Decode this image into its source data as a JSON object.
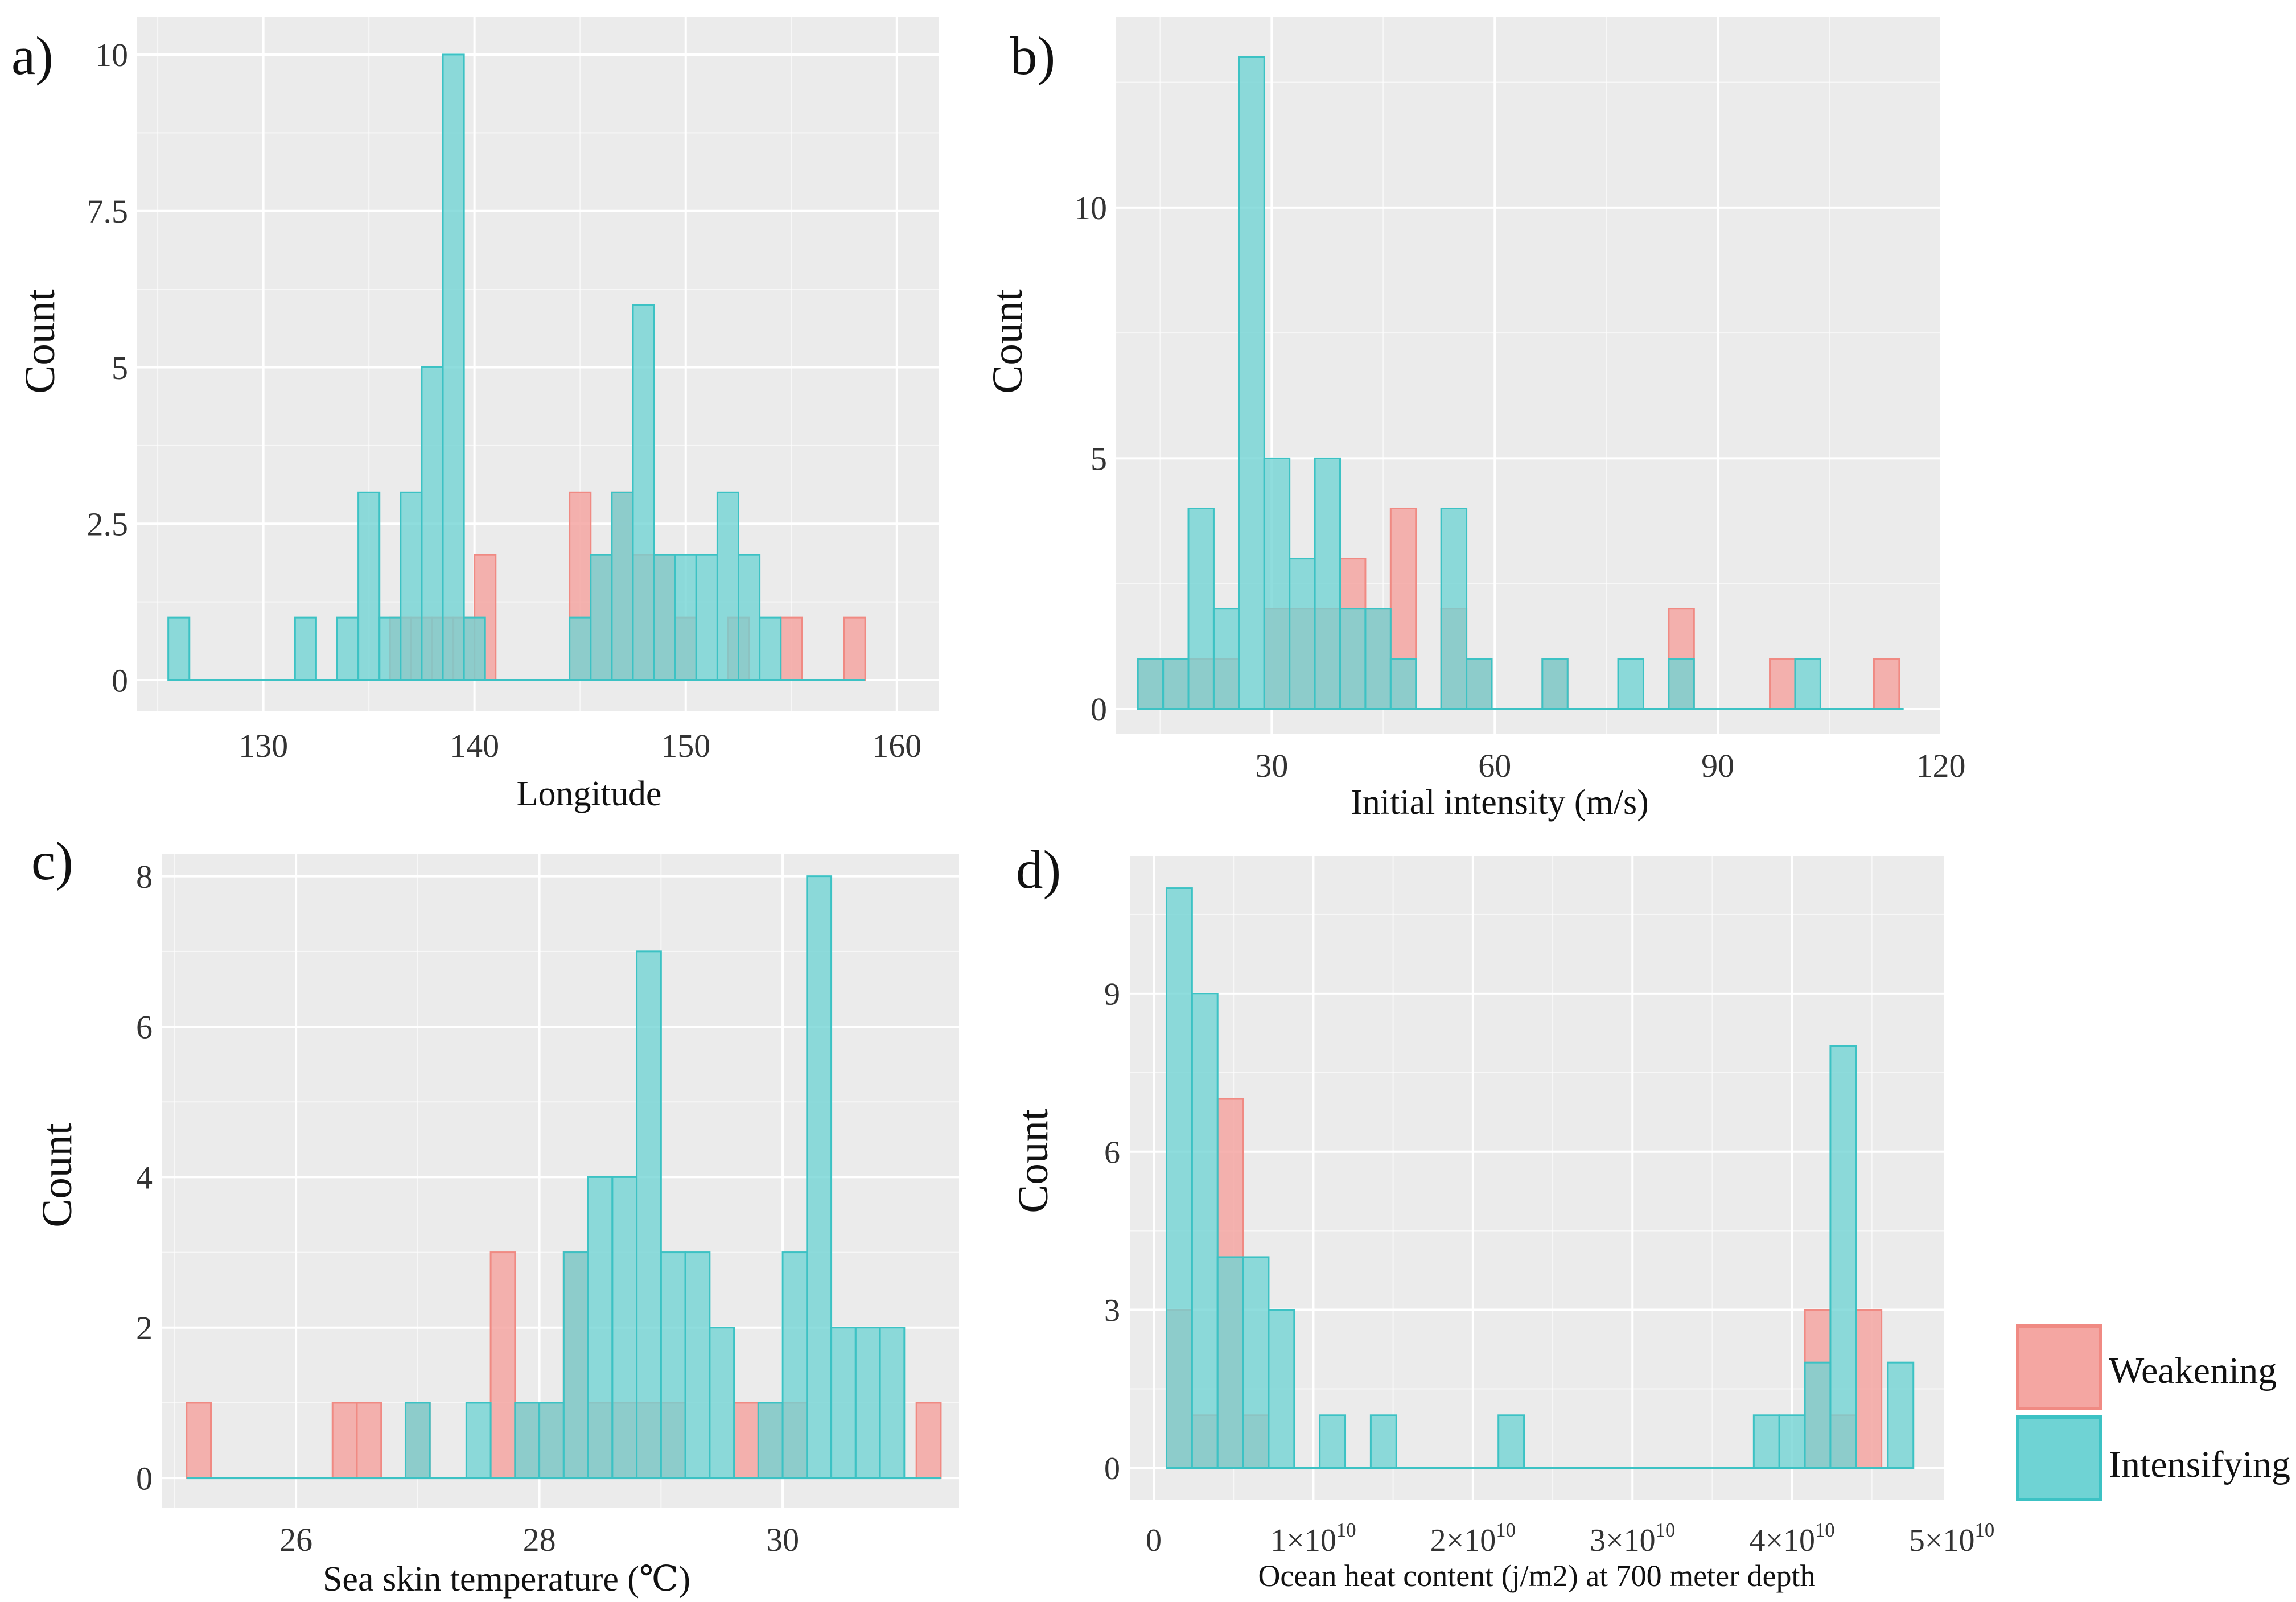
{
  "chart_data": [
    {
      "panel_label": "a)",
      "type": "bar",
      "xlabel": "Longitude",
      "ylabel": "Count",
      "xlim": [
        124,
        162
      ],
      "ylim": [
        -0.5,
        10.6
      ],
      "xticks": [
        130,
        140,
        150,
        160
      ],
      "xtick_labels": [
        "130",
        "140",
        "150",
        "160"
      ],
      "yticks": [
        0,
        2.5,
        5,
        7.5,
        10
      ],
      "ytick_labels": [
        "0",
        "2.5",
        "5",
        "7.5",
        "10"
      ],
      "baseline": {
        "from": 125.5,
        "to": 158.5
      },
      "series": [
        {
          "name": "Weakening",
          "bins": [
            {
              "x0": 136,
              "x1": 137,
              "v": 1
            },
            {
              "x0": 137,
              "x1": 138,
              "v": 1
            },
            {
              "x0": 138,
              "x1": 139,
              "v": 1
            },
            {
              "x0": 139,
              "x1": 140,
              "v": 1
            },
            {
              "x0": 140,
              "x1": 141,
              "v": 2
            },
            {
              "x0": 144.5,
              "x1": 145.5,
              "v": 3
            },
            {
              "x0": 145.5,
              "x1": 146.5,
              "v": 2
            },
            {
              "x0": 146.5,
              "x1": 147.5,
              "v": 3
            },
            {
              "x0": 147.5,
              "x1": 148.5,
              "v": 2
            },
            {
              "x0": 148.5,
              "x1": 149.5,
              "v": 2
            },
            {
              "x0": 149.5,
              "x1": 150.5,
              "v": 1
            },
            {
              "x0": 152,
              "x1": 153,
              "v": 1
            },
            {
              "x0": 154.5,
              "x1": 155.5,
              "v": 1
            },
            {
              "x0": 157.5,
              "x1": 158.5,
              "v": 1
            }
          ]
        },
        {
          "name": "Intensifying",
          "bins": [
            {
              "x0": 125.5,
              "x1": 126.5,
              "v": 1
            },
            {
              "x0": 131.5,
              "x1": 132.5,
              "v": 1
            },
            {
              "x0": 133.5,
              "x1": 134.5,
              "v": 1
            },
            {
              "x0": 134.5,
              "x1": 135.5,
              "v": 3
            },
            {
              "x0": 135.5,
              "x1": 136.5,
              "v": 1
            },
            {
              "x0": 136.5,
              "x1": 137.5,
              "v": 3
            },
            {
              "x0": 137.5,
              "x1": 138.5,
              "v": 5
            },
            {
              "x0": 138.5,
              "x1": 139.5,
              "v": 10
            },
            {
              "x0": 139.5,
              "x1": 140.5,
              "v": 1
            },
            {
              "x0": 144.5,
              "x1": 145.5,
              "v": 1
            },
            {
              "x0": 145.5,
              "x1": 146.5,
              "v": 2
            },
            {
              "x0": 146.5,
              "x1": 147.5,
              "v": 3
            },
            {
              "x0": 147.5,
              "x1": 148.5,
              "v": 6
            },
            {
              "x0": 148.5,
              "x1": 149.5,
              "v": 2
            },
            {
              "x0": 149.5,
              "x1": 150.5,
              "v": 2
            },
            {
              "x0": 150.5,
              "x1": 151.5,
              "v": 2
            },
            {
              "x0": 151.5,
              "x1": 152.5,
              "v": 3
            },
            {
              "x0": 152.5,
              "x1": 153.5,
              "v": 2
            },
            {
              "x0": 153.5,
              "x1": 154.5,
              "v": 1
            }
          ]
        }
      ]
    },
    {
      "panel_label": "b)",
      "type": "bar",
      "xlabel": "Initial intensity (m/s)",
      "ylabel": "Count",
      "xlim": [
        9,
        120
      ],
      "ylim": [
        -0.5,
        13.8
      ],
      "xticks": [
        30,
        60,
        90,
        120
      ],
      "xtick_labels": [
        "30",
        "60",
        "90",
        "120"
      ],
      "yticks": [
        0,
        5,
        10
      ],
      "ytick_labels": [
        "0",
        "5",
        "10"
      ],
      "baseline": {
        "from": 12,
        "to": 115
      },
      "series": [
        {
          "name": "Weakening",
          "bins": [
            {
              "x0": 12,
              "x1": 15.4,
              "v": 1
            },
            {
              "x0": 15.4,
              "x1": 18.8,
              "v": 1
            },
            {
              "x0": 18.8,
              "x1": 22.2,
              "v": 1
            },
            {
              "x0": 22.2,
              "x1": 25.6,
              "v": 1
            },
            {
              "x0": 29,
              "x1": 32.4,
              "v": 2
            },
            {
              "x0": 32.4,
              "x1": 35.8,
              "v": 2
            },
            {
              "x0": 35.8,
              "x1": 39.2,
              "v": 2
            },
            {
              "x0": 39.2,
              "x1": 42.6,
              "v": 3
            },
            {
              "x0": 42.6,
              "x1": 46,
              "v": 2
            },
            {
              "x0": 46,
              "x1": 49.4,
              "v": 4
            },
            {
              "x0": 52.8,
              "x1": 56.2,
              "v": 2
            },
            {
              "x0": 56.2,
              "x1": 59.6,
              "v": 1
            },
            {
              "x0": 66.4,
              "x1": 69.8,
              "v": 1
            },
            {
              "x0": 83.4,
              "x1": 86.8,
              "v": 2
            },
            {
              "x0": 97,
              "x1": 100.4,
              "v": 1
            },
            {
              "x0": 111,
              "x1": 114.4,
              "v": 1
            }
          ]
        },
        {
          "name": "Intensifying",
          "bins": [
            {
              "x0": 12,
              "x1": 15.4,
              "v": 1
            },
            {
              "x0": 15.4,
              "x1": 18.8,
              "v": 1
            },
            {
              "x0": 18.8,
              "x1": 22.2,
              "v": 4
            },
            {
              "x0": 22.2,
              "x1": 25.6,
              "v": 2
            },
            {
              "x0": 25.6,
              "x1": 29,
              "v": 13
            },
            {
              "x0": 29,
              "x1": 32.4,
              "v": 5
            },
            {
              "x0": 32.4,
              "x1": 35.8,
              "v": 3
            },
            {
              "x0": 35.8,
              "x1": 39.2,
              "v": 5
            },
            {
              "x0": 39.2,
              "x1": 42.6,
              "v": 2
            },
            {
              "x0": 42.6,
              "x1": 46,
              "v": 2
            },
            {
              "x0": 46,
              "x1": 49.4,
              "v": 1
            },
            {
              "x0": 52.8,
              "x1": 56.2,
              "v": 4
            },
            {
              "x0": 56.2,
              "x1": 59.6,
              "v": 1
            },
            {
              "x0": 66.4,
              "x1": 69.8,
              "v": 1
            },
            {
              "x0": 76.6,
              "x1": 80,
              "v": 1
            },
            {
              "x0": 83.4,
              "x1": 86.8,
              "v": 1
            },
            {
              "x0": 100.4,
              "x1": 103.8,
              "v": 1
            }
          ]
        }
      ]
    },
    {
      "panel_label": "c)",
      "type": "bar",
      "xlabel": "Sea skin temperature (℃)",
      "ylabel": "Count",
      "xlim": [
        24.9,
        31.45
      ],
      "ylim": [
        -0.4,
        8.3
      ],
      "xticks": [
        26,
        28,
        30
      ],
      "xtick_labels": [
        "26",
        "28",
        "30"
      ],
      "yticks": [
        0,
        2,
        4,
        6,
        8
      ],
      "ytick_labels": [
        "0",
        "2",
        "4",
        "6",
        "8"
      ],
      "baseline": {
        "from": 25.1,
        "to": 31.3
      },
      "series": [
        {
          "name": "Weakening",
          "bins": [
            {
              "x0": 25.1,
              "x1": 25.3,
              "v": 1
            },
            {
              "x0": 26.3,
              "x1": 26.5,
              "v": 1
            },
            {
              "x0": 26.5,
              "x1": 26.7,
              "v": 1
            },
            {
              "x0": 26.9,
              "x1": 27.1,
              "v": 1
            },
            {
              "x0": 27.6,
              "x1": 27.8,
              "v": 3
            },
            {
              "x0": 27.8,
              "x1": 28.0,
              "v": 1
            },
            {
              "x0": 28.0,
              "x1": 28.2,
              "v": 1
            },
            {
              "x0": 28.2,
              "x1": 28.4,
              "v": 3
            },
            {
              "x0": 28.4,
              "x1": 28.6,
              "v": 1
            },
            {
              "x0": 28.6,
              "x1": 28.8,
              "v": 1
            },
            {
              "x0": 28.8,
              "x1": 29.0,
              "v": 1
            },
            {
              "x0": 29.0,
              "x1": 29.2,
              "v": 1
            },
            {
              "x0": 29.6,
              "x1": 29.8,
              "v": 1
            },
            {
              "x0": 29.8,
              "x1": 30.0,
              "v": 1
            },
            {
              "x0": 30.0,
              "x1": 30.2,
              "v": 1
            },
            {
              "x0": 31.1,
              "x1": 31.3,
              "v": 1
            }
          ]
        },
        {
          "name": "Intensifying",
          "bins": [
            {
              "x0": 26.9,
              "x1": 27.1,
              "v": 1
            },
            {
              "x0": 27.4,
              "x1": 27.6,
              "v": 1
            },
            {
              "x0": 27.8,
              "x1": 28.0,
              "v": 1
            },
            {
              "x0": 28.0,
              "x1": 28.2,
              "v": 1
            },
            {
              "x0": 28.2,
              "x1": 28.4,
              "v": 3
            },
            {
              "x0": 28.4,
              "x1": 28.6,
              "v": 4
            },
            {
              "x0": 28.6,
              "x1": 28.8,
              "v": 4
            },
            {
              "x0": 28.8,
              "x1": 29.0,
              "v": 7
            },
            {
              "x0": 29.0,
              "x1": 29.2,
              "v": 3
            },
            {
              "x0": 29.2,
              "x1": 29.4,
              "v": 3
            },
            {
              "x0": 29.4,
              "x1": 29.6,
              "v": 2
            },
            {
              "x0": 29.8,
              "x1": 30.0,
              "v": 1
            },
            {
              "x0": 30.0,
              "x1": 30.2,
              "v": 3
            },
            {
              "x0": 30.2,
              "x1": 30.4,
              "v": 8
            },
            {
              "x0": 30.4,
              "x1": 30.6,
              "v": 2
            },
            {
              "x0": 30.6,
              "x1": 30.8,
              "v": 2
            },
            {
              "x0": 30.8,
              "x1": 31.0,
              "v": 2
            }
          ]
        }
      ]
    },
    {
      "panel_label": "d)",
      "type": "bar",
      "xlabel": "Ocean heat content (j/m2) at 700 meter depth",
      "ylabel": "Count",
      "xlim": [
        -1500000000.0,
        49500000000.0
      ],
      "ylim": [
        -0.6,
        11.6
      ],
      "xticks": [
        0,
        10000000000.0,
        20000000000.0,
        30000000000.0,
        40000000000.0,
        50000000000.0
      ],
      "xtick_labels": [
        {
          "base": "0",
          "exp": ""
        },
        {
          "base": "1×10",
          "exp": "10"
        },
        {
          "base": "2×10",
          "exp": "10"
        },
        {
          "base": "3×10",
          "exp": "10"
        },
        {
          "base": "4×10",
          "exp": "10"
        },
        {
          "base": "5×10",
          "exp": "10"
        }
      ],
      "yticks": [
        0,
        3,
        6,
        9
      ],
      "ytick_labels": [
        "0",
        "3",
        "6",
        "9"
      ],
      "baseline": {
        "from": 800000000.0,
        "to": 47600000000.0
      },
      "series": [
        {
          "name": "Weakening",
          "bins": [
            {
              "x0": 800000000.0,
              "x1": 2400000000.0,
              "v": 3
            },
            {
              "x0": 2400000000.0,
              "x1": 4000000000.0,
              "v": 1
            },
            {
              "x0": 4000000000.0,
              "x1": 5600000000.0,
              "v": 7
            },
            {
              "x0": 5600000000.0,
              "x1": 7200000000.0,
              "v": 1
            },
            {
              "x0": 40800000000.0,
              "x1": 42400000000.0,
              "v": 3
            },
            {
              "x0": 42400000000.0,
              "x1": 44000000000.0,
              "v": 1
            },
            {
              "x0": 44000000000.0,
              "x1": 45600000000.0,
              "v": 3
            }
          ]
        },
        {
          "name": "Intensifying",
          "bins": [
            {
              "x0": 800000000.0,
              "x1": 2400000000.0,
              "v": 11
            },
            {
              "x0": 2400000000.0,
              "x1": 4000000000.0,
              "v": 9
            },
            {
              "x0": 4000000000.0,
              "x1": 5600000000.0,
              "v": 4
            },
            {
              "x0": 5600000000.0,
              "x1": 7200000000.0,
              "v": 4
            },
            {
              "x0": 7200000000.0,
              "x1": 8800000000.0,
              "v": 3
            },
            {
              "x0": 10400000000.0,
              "x1": 12000000000.0,
              "v": 1
            },
            {
              "x0": 13600000000.0,
              "x1": 15200000000.0,
              "v": 1
            },
            {
              "x0": 21600000000.0,
              "x1": 23200000000.0,
              "v": 1
            },
            {
              "x0": 37600000000.0,
              "x1": 39200000000.0,
              "v": 1
            },
            {
              "x0": 39200000000.0,
              "x1": 40800000000.0,
              "v": 1
            },
            {
              "x0": 40800000000.0,
              "x1": 42400000000.0,
              "v": 2
            },
            {
              "x0": 42400000000.0,
              "x1": 44000000000.0,
              "v": 8
            },
            {
              "x0": 46000000000.0,
              "x1": 47600000000.0,
              "v": 2
            }
          ]
        }
      ]
    }
  ],
  "legend": {
    "position": "right",
    "items": [
      {
        "name": "Weakening",
        "label": "Weakening"
      },
      {
        "name": "Intensifying",
        "label": "Intensifying"
      }
    ]
  },
  "colors": {
    "panel_bg": "#ebebeb",
    "grid": "#ffffff",
    "weakening_fill": "#f4a6a2",
    "weakening_stroke": "#f08a83",
    "intensifying_fill": "#6fd3d4",
    "intensifying_stroke": "#3cc2c4",
    "text": "#111111",
    "tick_text": "#333333"
  }
}
